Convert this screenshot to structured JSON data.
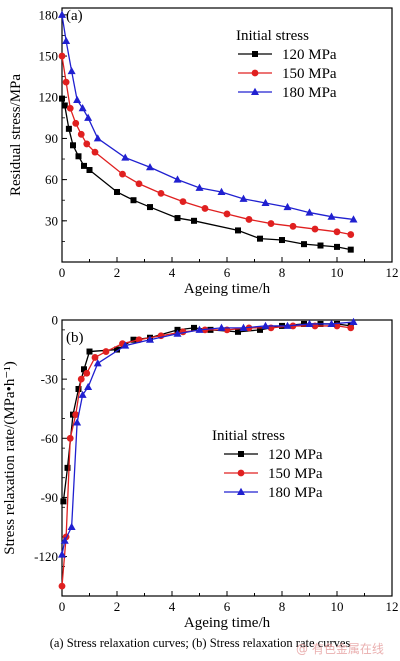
{
  "figure": {
    "caption": "(a) Stress relaxation curves; (b) Stress  relaxation rate curves",
    "watermark": "@ 有色金属在线"
  },
  "chart_data": [
    {
      "type": "line",
      "panel_label": "(a)",
      "xlabel": "Ageing time/h",
      "ylabel": "Residual stress/MPa",
      "xlim": [
        0,
        12
      ],
      "ylim": [
        0,
        185
      ],
      "xticks": [
        0,
        2,
        4,
        6,
        8,
        10,
        12
      ],
      "yticks": [
        30,
        60,
        90,
        120,
        150,
        180
      ],
      "grid": false,
      "legend_title": "Initial stress",
      "legend_position": "top-right",
      "series": [
        {
          "name": "120  MPa",
          "color": "#000000",
          "marker": "square",
          "x": [
            0,
            0.1,
            0.25,
            0.4,
            0.6,
            0.8,
            1.0,
            2.0,
            2.6,
            3.2,
            4.2,
            4.8,
            6.4,
            7.2,
            8.0,
            8.8,
            9.4,
            10.0,
            10.5
          ],
          "y": [
            119,
            114,
            97,
            85,
            77,
            70,
            67,
            51,
            45,
            40,
            32,
            30,
            23,
            17,
            16,
            13,
            12,
            11,
            9
          ]
        },
        {
          "name": "150  MPa",
          "color": "#e02020",
          "marker": "circle",
          "x": [
            0,
            0.15,
            0.3,
            0.5,
            0.7,
            0.9,
            1.2,
            2.2,
            2.8,
            3.6,
            4.4,
            5.2,
            6.0,
            6.8,
            7.6,
            8.4,
            9.2,
            10.0,
            10.5
          ],
          "y": [
            150,
            131,
            112,
            101,
            93,
            86,
            80,
            64,
            57,
            50,
            44,
            39,
            35,
            31,
            28,
            26,
            24,
            22,
            20
          ]
        },
        {
          "name": "180  MPa",
          "color": "#2020d0",
          "marker": "triangle",
          "x": [
            0,
            0.15,
            0.35,
            0.55,
            0.75,
            0.95,
            1.3,
            2.3,
            3.2,
            4.2,
            5.0,
            5.8,
            6.6,
            7.4,
            8.2,
            9.0,
            9.8,
            10.6
          ],
          "y": [
            180,
            161,
            139,
            118,
            112,
            105,
            90,
            76,
            69,
            60,
            54,
            51,
            46,
            43,
            40,
            36,
            33,
            31
          ]
        }
      ]
    },
    {
      "type": "line",
      "panel_label": "(b)",
      "xlabel": "Ageing time/h",
      "ylabel": "Stress relaxation rate/(MPa•h⁻¹)",
      "xlim": [
        0,
        12
      ],
      "ylim": [
        -140,
        0
      ],
      "xticks": [
        0,
        2,
        4,
        6,
        8,
        10,
        12
      ],
      "yticks": [
        0,
        -30,
        -60,
        -90,
        -120
      ],
      "grid": false,
      "legend_title": "Initial stress",
      "legend_position": "bottom-right",
      "series": [
        {
          "name": "120  MPa",
          "color": "#000000",
          "marker": "square",
          "x": [
            0.05,
            0.2,
            0.4,
            0.6,
            0.8,
            1.0,
            2.0,
            2.6,
            3.2,
            4.2,
            4.8,
            5.4,
            6.4,
            7.2,
            8.0,
            8.8,
            9.4,
            10.0,
            10.5
          ],
          "y": [
            -92,
            -75,
            -48,
            -35,
            -25,
            -16,
            -15,
            -10,
            -9,
            -5,
            -4,
            -5,
            -6,
            -5,
            -3,
            -2,
            -2,
            -2,
            -3
          ]
        },
        {
          "name": "150  MPa",
          "color": "#e02020",
          "marker": "circle",
          "x": [
            0.0,
            0.15,
            0.3,
            0.5,
            0.7,
            0.9,
            1.2,
            1.6,
            2.2,
            2.8,
            3.6,
            4.4,
            5.2,
            6.0,
            6.8,
            7.6,
            8.4,
            9.2,
            10.0,
            10.5
          ],
          "y": [
            -135,
            -110,
            -60,
            -48,
            -30,
            -27,
            -19,
            -16,
            -12,
            -10,
            -8,
            -6,
            -5,
            -5,
            -4,
            -4,
            -3,
            -3,
            -3,
            -4
          ]
        },
        {
          "name": "180  MPa",
          "color": "#2020d0",
          "marker": "triangle",
          "x": [
            0.0,
            0.1,
            0.35,
            0.55,
            0.75,
            0.95,
            1.3,
            2.3,
            3.2,
            4.2,
            5.0,
            5.8,
            6.6,
            7.4,
            8.2,
            9.0,
            9.8,
            10.6
          ],
          "y": [
            -119,
            -112,
            -105,
            -52,
            -38,
            -34,
            -22,
            -13,
            -10,
            -7,
            -5,
            -4,
            -4,
            -3,
            -3,
            -2,
            -2,
            -1
          ]
        }
      ]
    }
  ]
}
